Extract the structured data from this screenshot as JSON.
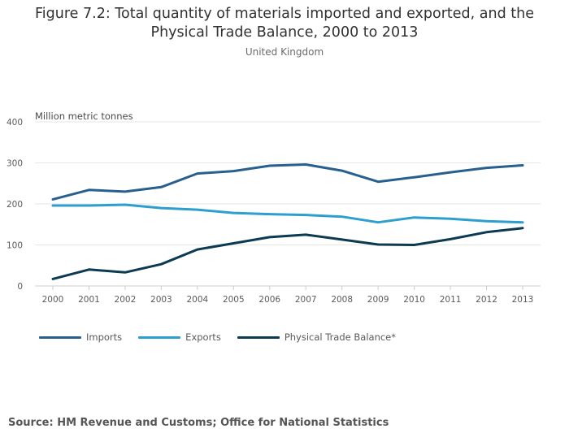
{
  "header": {
    "title_line1": "Figure 7.2: Total quantity of materials imported and exported, and the",
    "title_line2": "Physical Trade Balance, 2000 to 2013",
    "subtitle": "United Kingdom"
  },
  "source": "Source: HM Revenue and Customs; Office for National Statistics",
  "colors": {
    "imports": "#27608f",
    "exports": "#2c9fcf",
    "balance": "#0b3a52",
    "grid": "#e6e6e6",
    "axis_text": "#5a5a5a"
  },
  "chart_data": {
    "type": "line",
    "title": "Figure 7.2: Total quantity of materials imported and exported, and the Physical Trade Balance, 2000 to 2013",
    "subtitle": "United Kingdom",
    "xlabel": "",
    "ylabel": "Million metric tonnes",
    "ylim": [
      0,
      400
    ],
    "yticks": [
      0,
      100,
      200,
      300,
      400
    ],
    "grid": true,
    "legend_position": "bottom-left",
    "categories": [
      "2000",
      "2001",
      "2002",
      "2003",
      "2004",
      "2005",
      "2006",
      "2007",
      "2008",
      "2009",
      "2010",
      "2011",
      "2012",
      "2013"
    ],
    "series": [
      {
        "name": "Imports",
        "color_key": "imports",
        "values": [
          211,
          234,
          230,
          241,
          274,
          280,
          293,
          296,
          281,
          254,
          265,
          277,
          288,
          294
        ]
      },
      {
        "name": "Exports",
        "color_key": "exports",
        "values": [
          196,
          196,
          198,
          190,
          186,
          178,
          175,
          173,
          169,
          155,
          167,
          164,
          158,
          155
        ]
      },
      {
        "name": "Physical Trade Balance*",
        "color_key": "balance",
        "values": [
          17,
          40,
          33,
          53,
          89,
          104,
          119,
          125,
          113,
          101,
          100,
          114,
          131,
          141
        ]
      }
    ]
  }
}
